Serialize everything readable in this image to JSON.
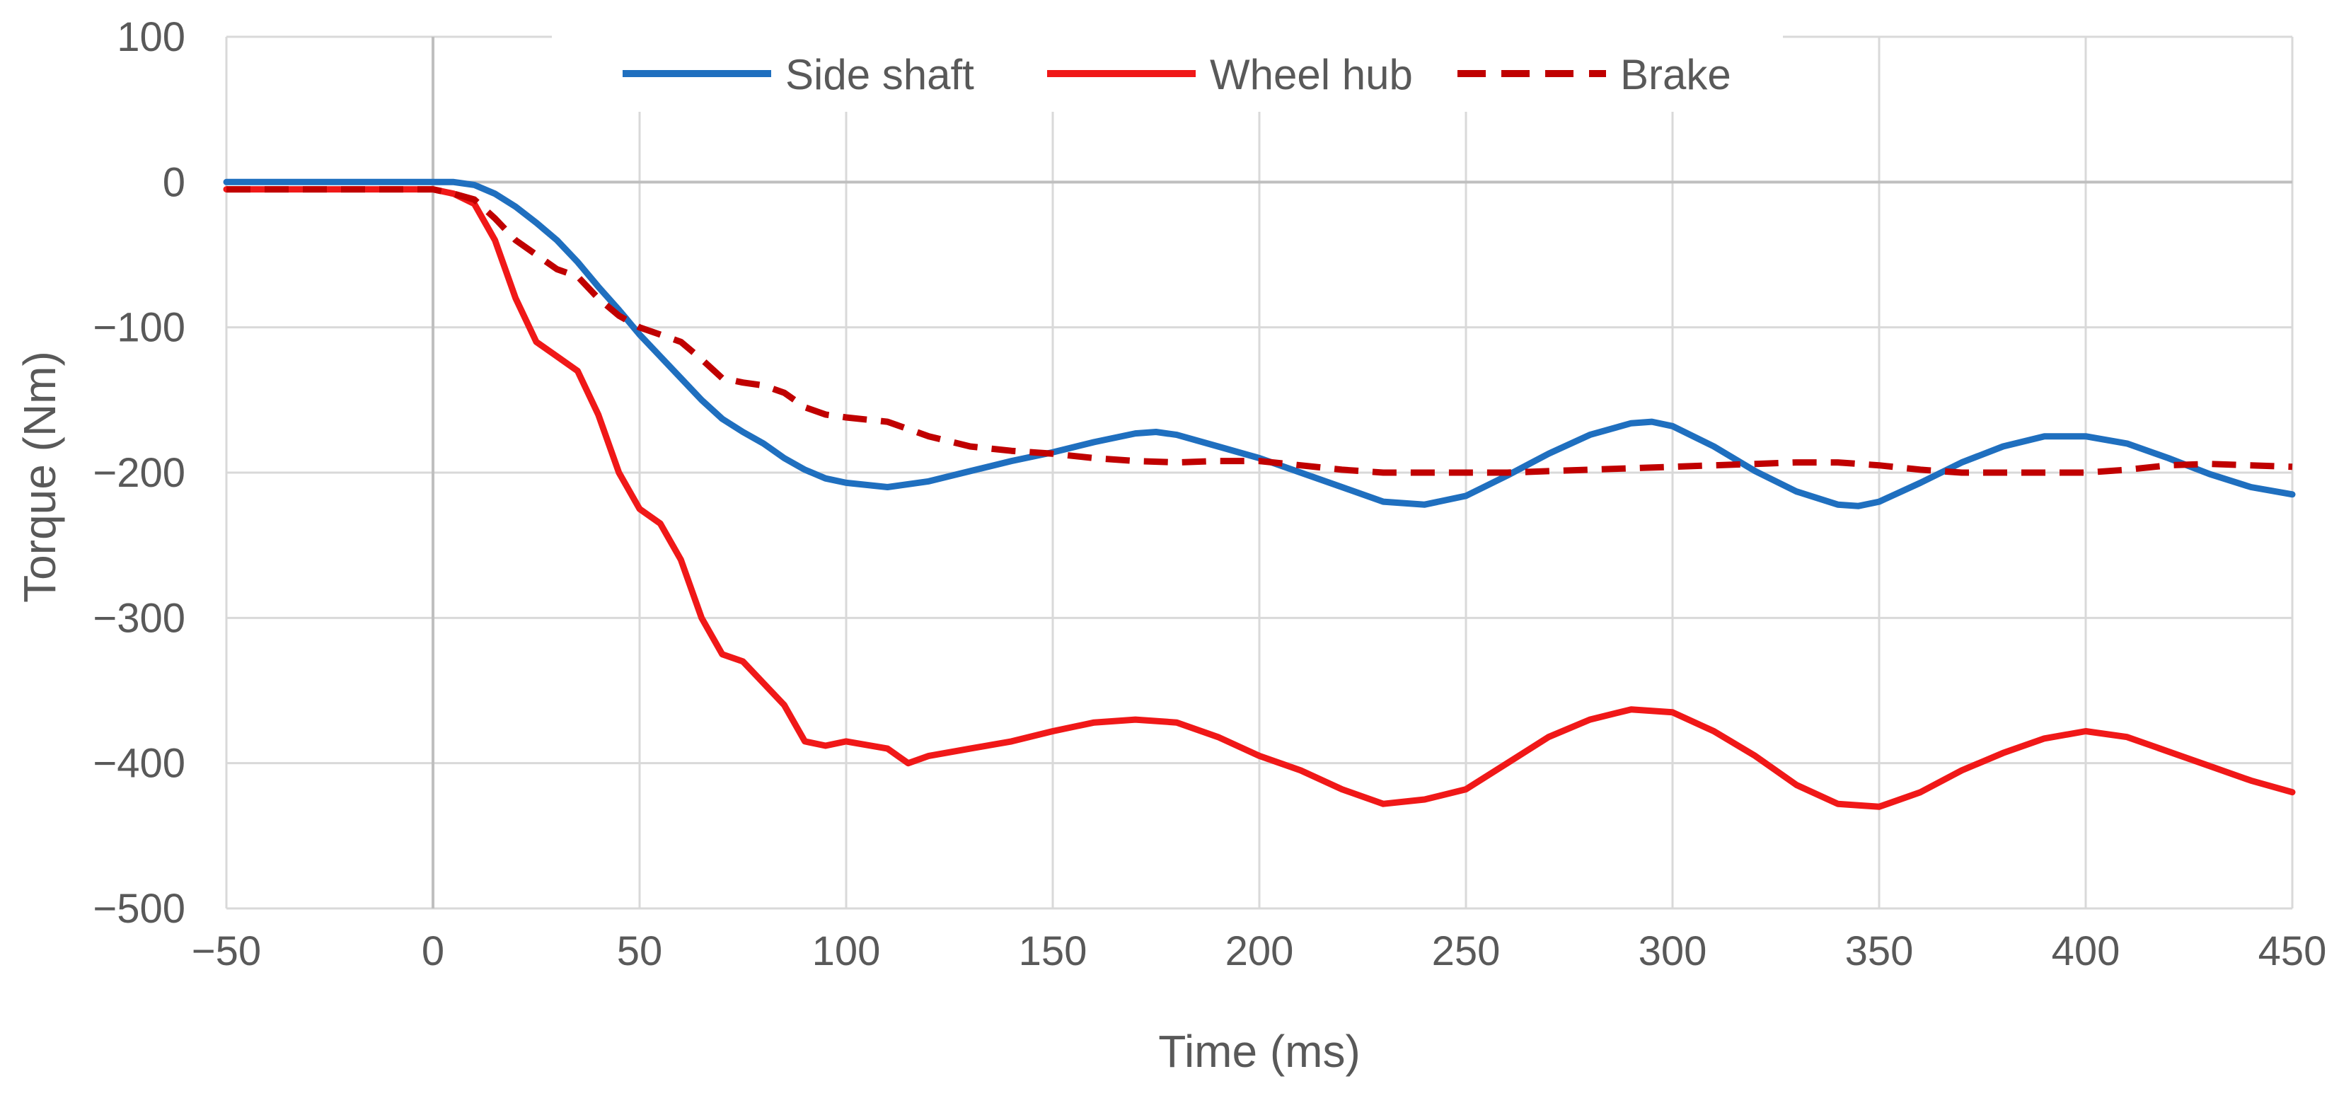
{
  "chart_data": {
    "type": "line",
    "title": "",
    "xlabel": "Time (ms)",
    "ylabel": "Torque (Nm)",
    "xlim": [
      -50,
      450
    ],
    "ylim": [
      -500,
      100
    ],
    "x_ticks": [
      -50,
      0,
      50,
      100,
      150,
      200,
      250,
      300,
      350,
      400,
      450
    ],
    "y_ticks": [
      100,
      0,
      -100,
      -200,
      -300,
      -400,
      -500
    ],
    "x_tick_labels": [
      "−50",
      "0",
      "50",
      "100",
      "150",
      "200",
      "250",
      "300",
      "350",
      "400",
      "450"
    ],
    "y_tick_labels": [
      "100",
      "0",
      "−100",
      "−200",
      "−300",
      "−400",
      "−500"
    ],
    "grid": true,
    "legend_position": "top-center",
    "series": [
      {
        "name": "Side shaft",
        "color": "#1F6FBF",
        "dash": "solid",
        "x": [
          -50,
          -40,
          -30,
          -20,
          -10,
          0,
          5,
          10,
          15,
          20,
          25,
          30,
          35,
          40,
          45,
          50,
          55,
          60,
          65,
          70,
          75,
          80,
          85,
          90,
          95,
          100,
          110,
          120,
          130,
          140,
          150,
          160,
          170,
          175,
          180,
          190,
          200,
          210,
          220,
          230,
          240,
          250,
          260,
          270,
          280,
          290,
          295,
          300,
          310,
          320,
          330,
          340,
          345,
          350,
          360,
          370,
          380,
          390,
          400,
          410,
          420,
          430,
          440,
          450
        ],
        "values": [
          0,
          0,
          0,
          0,
          0,
          0,
          0,
          -2,
          -8,
          -17,
          -28,
          -40,
          -55,
          -72,
          -88,
          -105,
          -120,
          -135,
          -150,
          -163,
          -172,
          -180,
          -190,
          -198,
          -204,
          -207,
          -210,
          -206,
          -199,
          -192,
          -186,
          -179,
          -173,
          -172,
          -174,
          -182,
          -190,
          -200,
          -210,
          -220,
          -222,
          -216,
          -202,
          -187,
          -174,
          -166,
          -165,
          -168,
          -182,
          -199,
          -213,
          -222,
          -223,
          -220,
          -207,
          -193,
          -182,
          -175,
          -175,
          -180,
          -190,
          -201,
          -210,
          -215
        ]
      },
      {
        "name": "Wheel hub",
        "color": "#F01818",
        "dash": "solid",
        "x": [
          -50,
          -40,
          -30,
          -20,
          -10,
          0,
          5,
          10,
          15,
          20,
          25,
          30,
          35,
          40,
          45,
          50,
          55,
          60,
          65,
          70,
          75,
          80,
          85,
          90,
          95,
          100,
          110,
          115,
          120,
          130,
          140,
          150,
          160,
          170,
          180,
          190,
          200,
          210,
          220,
          230,
          240,
          250,
          260,
          270,
          280,
          290,
          300,
          310,
          320,
          330,
          340,
          350,
          360,
          370,
          380,
          390,
          400,
          410,
          420,
          430,
          440,
          450
        ],
        "values": [
          -5,
          -5,
          -5,
          -5,
          -5,
          -5,
          -8,
          -15,
          -40,
          -80,
          -110,
          -120,
          -130,
          -160,
          -200,
          -225,
          -235,
          -260,
          -300,
          -325,
          -330,
          -345,
          -360,
          -385,
          -388,
          -385,
          -390,
          -400,
          -395,
          -390,
          -385,
          -378,
          -372,
          -370,
          -372,
          -382,
          -395,
          -405,
          -418,
          -428,
          -425,
          -418,
          -400,
          -382,
          -370,
          -363,
          -365,
          -378,
          -395,
          -415,
          -428,
          -430,
          -420,
          -405,
          -393,
          -383,
          -378,
          -382,
          -392,
          -402,
          -412,
          -420
        ]
      },
      {
        "name": "Brake",
        "color": "#C00000",
        "dash": "dashed",
        "x": [
          -50,
          -40,
          -30,
          -20,
          -10,
          0,
          5,
          10,
          15,
          20,
          25,
          30,
          35,
          40,
          45,
          50,
          55,
          60,
          65,
          70,
          75,
          80,
          85,
          90,
          95,
          100,
          110,
          120,
          130,
          140,
          150,
          160,
          170,
          180,
          190,
          200,
          210,
          220,
          230,
          240,
          250,
          260,
          270,
          280,
          290,
          300,
          310,
          320,
          330,
          340,
          350,
          360,
          370,
          380,
          390,
          400,
          410,
          420,
          430,
          440,
          450
        ],
        "values": [
          -5,
          -5,
          -5,
          -5,
          -5,
          -5,
          -8,
          -12,
          -25,
          -40,
          -50,
          -60,
          -65,
          -80,
          -92,
          -100,
          -105,
          -110,
          -122,
          -135,
          -138,
          -140,
          -145,
          -155,
          -160,
          -162,
          -165,
          -175,
          -182,
          -185,
          -187,
          -190,
          -192,
          -193,
          -192,
          -192,
          -195,
          -198,
          -200,
          -200,
          -200,
          -200,
          -199,
          -198,
          -197,
          -196,
          -195,
          -194,
          -193,
          -193,
          -195,
          -198,
          -200,
          -200,
          -200,
          -200,
          -198,
          -195,
          -194,
          -195,
          -196
        ]
      }
    ]
  }
}
